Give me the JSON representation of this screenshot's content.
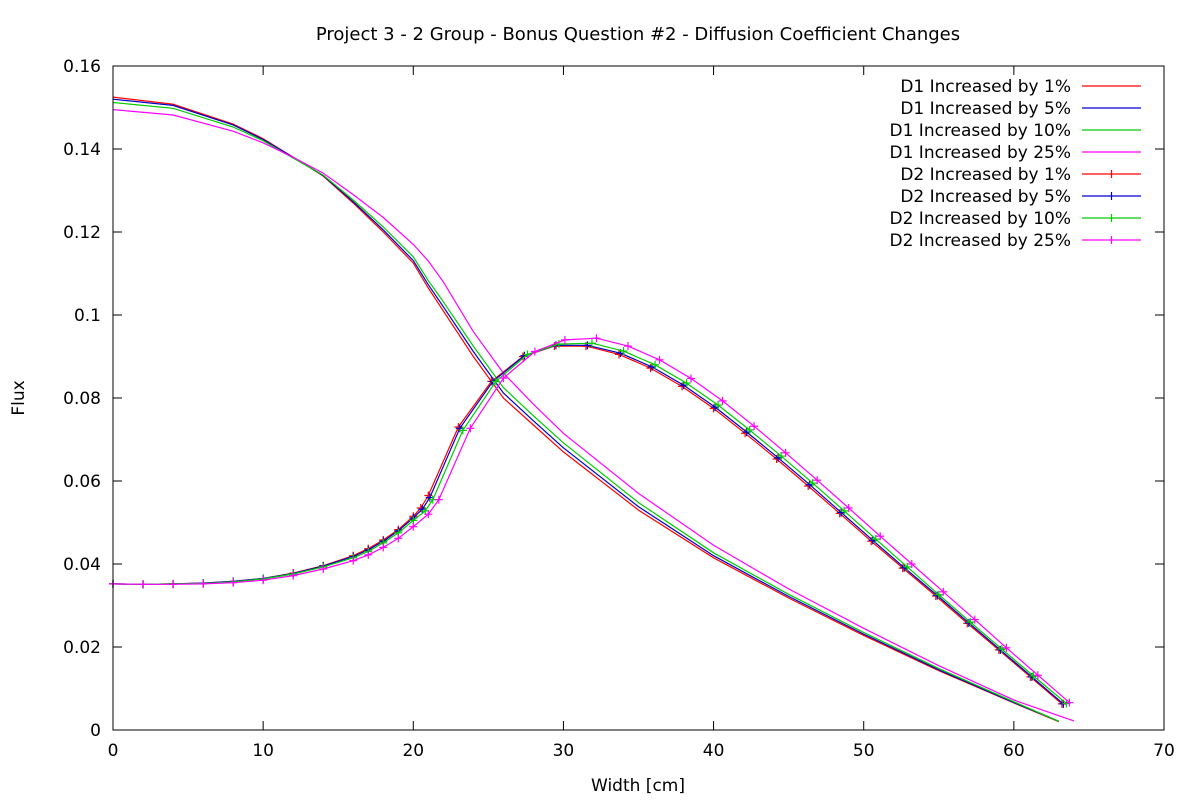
{
  "chart_data": {
    "type": "line",
    "title": "Project 3 - 2 Group - Bonus Question #2 - Diffusion Coefficient Changes",
    "xlabel": "Width [cm]",
    "ylabel": "Flux",
    "xlim": [
      0,
      70
    ],
    "ylim": [
      0,
      0.16
    ],
    "xticks": [
      0,
      10,
      20,
      30,
      40,
      50,
      60,
      70
    ],
    "yticks": [
      0,
      0.02,
      0.04,
      0.06,
      0.08,
      0.1,
      0.12,
      0.14,
      0.16
    ],
    "xtick_labels": [
      "0",
      "10",
      "20",
      "30",
      "40",
      "50",
      "60",
      "70"
    ],
    "ytick_labels": [
      "0",
      "0.02",
      "0.04",
      "0.06",
      "0.08",
      "0.1",
      "0.12",
      "0.14",
      "0.16"
    ],
    "grid": false,
    "legend_position": "top-right",
    "series": [
      {
        "name": "D1 Increased by 1%",
        "color": "#ff0000",
        "marker": "none",
        "x": [
          0,
          4,
          8,
          10,
          12,
          14,
          16,
          18,
          20,
          21,
          22,
          24,
          26,
          28,
          30,
          35,
          40,
          45,
          50,
          55,
          60,
          63
        ],
        "y": [
          0.1525,
          0.1508,
          0.146,
          0.1425,
          0.138,
          0.1335,
          0.127,
          0.12,
          0.1125,
          0.1065,
          0.101,
          0.09,
          0.08,
          0.0735,
          0.067,
          0.053,
          0.0415,
          0.0318,
          0.0228,
          0.0143,
          0.0065,
          0.002
        ]
      },
      {
        "name": "D1 Increased by 5%",
        "color": "#0000cc",
        "marker": "none",
        "x": [
          0,
          4,
          8,
          10,
          12,
          14,
          16,
          18,
          20,
          21,
          22,
          24,
          26,
          28,
          30,
          35,
          40,
          45,
          50,
          55,
          60,
          63
        ],
        "y": [
          0.152,
          0.1505,
          0.1458,
          0.1423,
          0.138,
          0.1336,
          0.1273,
          0.1205,
          0.1131,
          0.1073,
          0.102,
          0.0912,
          0.0812,
          0.0745,
          0.068,
          0.0538,
          0.042,
          0.0322,
          0.0231,
          0.0145,
          0.0066,
          0.0021
        ]
      },
      {
        "name": "D1 Increased by 10%",
        "color": "#00cc00",
        "marker": "none",
        "x": [
          0,
          4,
          8,
          10,
          12,
          14,
          16,
          18,
          20,
          21,
          22,
          24,
          26,
          28,
          30,
          35,
          40,
          45,
          50,
          55,
          60,
          63
        ],
        "y": [
          0.1512,
          0.1498,
          0.1453,
          0.142,
          0.1378,
          0.1337,
          0.1277,
          0.1212,
          0.114,
          0.1083,
          0.1032,
          0.0925,
          0.0825,
          0.0757,
          0.0692,
          0.0548,
          0.0427,
          0.0327,
          0.0235,
          0.0148,
          0.0068,
          0.0021
        ]
      },
      {
        "name": "D1 Increased by 25%",
        "color": "#ff00ff",
        "marker": "none",
        "x": [
          0,
          4,
          8,
          10,
          12,
          14,
          16,
          18,
          20,
          21,
          22,
          24,
          26,
          28,
          30,
          35,
          40,
          45,
          50,
          55,
          60,
          64
        ],
        "y": [
          0.1495,
          0.1482,
          0.1443,
          0.1415,
          0.138,
          0.1342,
          0.129,
          0.1235,
          0.117,
          0.113,
          0.108,
          0.096,
          0.086,
          0.0785,
          0.0715,
          0.057,
          0.0445,
          0.034,
          0.0245,
          0.0155,
          0.0072,
          0.0022
        ]
      },
      {
        "name": "D2 Increased by 1%",
        "color": "#ff0000",
        "marker": "plus",
        "x": [
          0,
          2,
          4,
          6,
          8,
          10,
          12,
          14,
          16,
          17,
          18,
          19,
          20,
          20.5,
          21,
          23,
          25.2,
          27.3,
          29.4,
          31.5,
          33.7,
          35.8,
          37.9,
          40,
          42.1,
          44.2,
          46.3,
          48.4,
          50.5,
          52.6,
          54.8,
          56.9,
          59,
          61.1,
          63.2
        ],
        "y": [
          0.0352,
          0.0351,
          0.0352,
          0.0354,
          0.0358,
          0.0365,
          0.0378,
          0.0396,
          0.042,
          0.0437,
          0.0458,
          0.0483,
          0.0515,
          0.0535,
          0.0565,
          0.073,
          0.084,
          0.09,
          0.0925,
          0.0925,
          0.0905,
          0.0872,
          0.0828,
          0.0775,
          0.0715,
          0.0653,
          0.0588,
          0.0522,
          0.0455,
          0.039,
          0.0323,
          0.0257,
          0.0193,
          0.0128,
          0.0063
        ]
      },
      {
        "name": "D2 Increased by 5%",
        "color": "#0000cc",
        "marker": "plus",
        "x": [
          0,
          2,
          4,
          6,
          8,
          10,
          12,
          14,
          16,
          17,
          18,
          19,
          20,
          20.6,
          21.1,
          23.1,
          25.3,
          27.4,
          29.5,
          31.6,
          33.8,
          35.9,
          38,
          40.1,
          42.2,
          44.3,
          46.4,
          48.5,
          50.6,
          52.7,
          54.9,
          57,
          59.1,
          61.2,
          63.3
        ],
        "y": [
          0.0352,
          0.0351,
          0.0352,
          0.0354,
          0.0358,
          0.0365,
          0.0377,
          0.0395,
          0.0418,
          0.0434,
          0.0455,
          0.048,
          0.0511,
          0.0532,
          0.056,
          0.0727,
          0.084,
          0.0902,
          0.0927,
          0.0927,
          0.0908,
          0.0875,
          0.0831,
          0.0778,
          0.0718,
          0.0656,
          0.0591,
          0.0524,
          0.0457,
          0.0391,
          0.0324,
          0.0258,
          0.0193,
          0.0128,
          0.0063
        ]
      },
      {
        "name": "D2 Increased by 10%",
        "color": "#00cc00",
        "marker": "plus",
        "x": [
          0,
          2,
          4,
          6,
          8,
          10,
          12,
          14,
          16,
          17,
          18,
          19,
          20,
          20.8,
          21.3,
          23.3,
          25.5,
          27.6,
          29.7,
          31.9,
          34,
          36.1,
          38.2,
          40.3,
          42.4,
          44.5,
          46.6,
          48.7,
          50.8,
          52.9,
          55,
          57.1,
          59.2,
          61.3,
          63.5
        ],
        "y": [
          0.0352,
          0.0351,
          0.0352,
          0.0353,
          0.0357,
          0.0364,
          0.0376,
          0.0393,
          0.0415,
          0.043,
          0.0451,
          0.0475,
          0.0505,
          0.0528,
          0.0555,
          0.0722,
          0.084,
          0.0905,
          0.093,
          0.0932,
          0.0913,
          0.088,
          0.0836,
          0.0783,
          0.0723,
          0.066,
          0.0595,
          0.0528,
          0.046,
          0.0393,
          0.0326,
          0.026,
          0.0195,
          0.013,
          0.0064
        ]
      },
      {
        "name": "D2 Increased by 25%",
        "color": "#ff00ff",
        "marker": "plus",
        "x": [
          0,
          2,
          4,
          6,
          8,
          10,
          12,
          14,
          16,
          17,
          18,
          19,
          20,
          21,
          21.7,
          23.8,
          26,
          28.1,
          30.1,
          32.2,
          34.3,
          36.4,
          38.5,
          40.6,
          42.7,
          44.8,
          46.9,
          49,
          51.1,
          53.2,
          55.3,
          57.4,
          59.5,
          61.6,
          63.7
        ],
        "y": [
          0.0352,
          0.0351,
          0.0351,
          0.0352,
          0.0355,
          0.0361,
          0.0372,
          0.0388,
          0.0408,
          0.0422,
          0.044,
          0.0462,
          0.049,
          0.052,
          0.0555,
          0.0727,
          0.0848,
          0.0912,
          0.094,
          0.0944,
          0.0925,
          0.0892,
          0.0847,
          0.0793,
          0.0732,
          0.0668,
          0.0602,
          0.0535,
          0.0467,
          0.04,
          0.0333,
          0.0266,
          0.0198,
          0.0132,
          0.0066
        ]
      }
    ]
  }
}
